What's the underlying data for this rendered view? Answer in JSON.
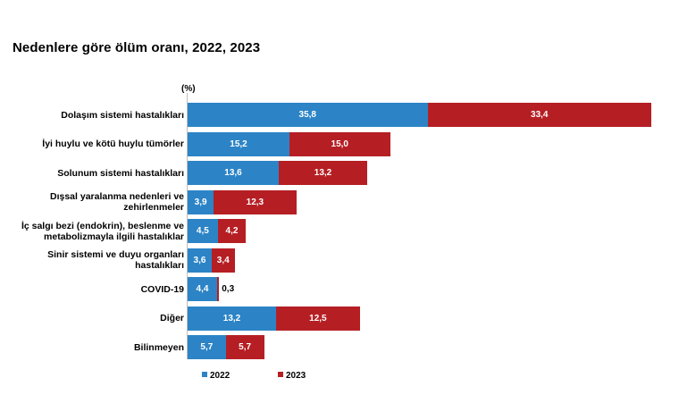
{
  "title": "Nedenlere göre ölüm oranı, 2022, 2023",
  "colors": {
    "y2022": "#2c84c6",
    "y2023": "#b51f24"
  },
  "chart_data": {
    "type": "bar",
    "orientation": "horizontal",
    "stacked": true,
    "unit_label": "(%)",
    "categories": [
      "Dolaşım sistemi hastalıkları",
      "İyi huylu ve kötü huylu tümörler",
      "Solunum sistemi hastalıkları",
      "Dışsal yaralanma nedenleri ve zehirlenmeler",
      "İç salgı bezi (endokrin), beslenme ve metabolizmayla ilgili hastalıklar",
      "Sinir sistemi ve duyu organları hastalıkları",
      "COVID-19",
      "Diğer",
      "Bilinmeyen"
    ],
    "series": [
      {
        "name": "2022",
        "values": [
          35.8,
          15.2,
          13.6,
          3.9,
          4.5,
          3.6,
          4.4,
          13.2,
          5.7
        ],
        "labels": [
          "35,8",
          "15,2",
          "13,6",
          "3,9",
          "4,5",
          "3,6",
          "4,4",
          "13,2",
          "5,7"
        ]
      },
      {
        "name": "2023",
        "values": [
          33.4,
          15.0,
          13.2,
          12.3,
          4.2,
          3.4,
          0.3,
          12.5,
          5.7
        ],
        "labels": [
          "33,4",
          "15,0",
          "13,2",
          "12,3",
          "4,2",
          "3,4",
          "0,3",
          "12,5",
          "5,7"
        ]
      }
    ],
    "legend": [
      "2022",
      "2023"
    ],
    "legend_position": "bottom"
  }
}
